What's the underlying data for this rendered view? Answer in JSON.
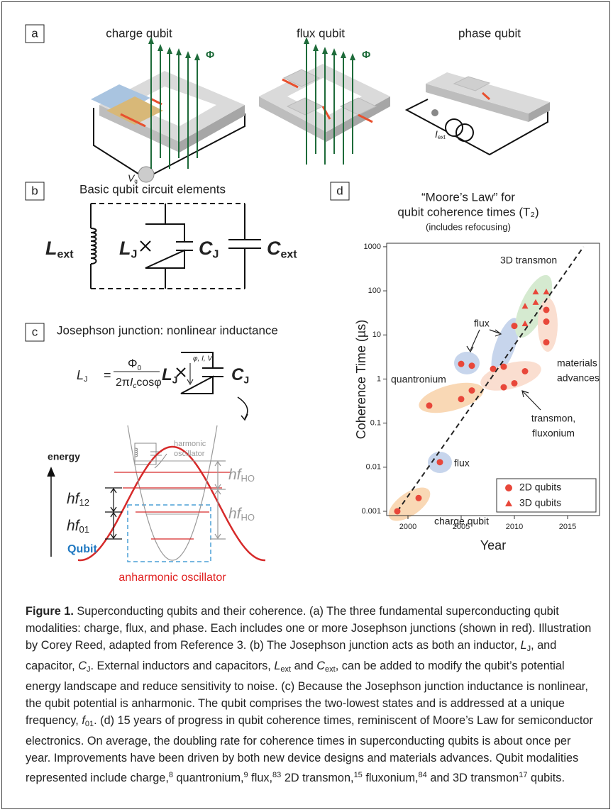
{
  "panels": {
    "a": {
      "label": "a",
      "titles": [
        "charge qubit",
        "flux qubit",
        "phase qubit"
      ],
      "flux_symbols": [
        "Φ",
        "Φ"
      ],
      "gate_voltage": {
        "main": "V",
        "sub": "g"
      },
      "bias_current": {
        "main": "I",
        "sub": "ext"
      }
    },
    "b": {
      "label": "b",
      "title": "Basic qubit circuit elements",
      "elements": [
        {
          "main": "L",
          "sub": "ext"
        },
        {
          "main": "L",
          "sub": "J"
        },
        {
          "main": "C",
          "sub": "J"
        },
        {
          "main": "C",
          "sub": "ext"
        }
      ]
    },
    "c": {
      "label": "c",
      "title": "Josephson junction: nonlinear inductance",
      "formula": {
        "lhs": {
          "main": "L",
          "sub": "J"
        },
        "equals": "=",
        "numerator": {
          "main": "Φ",
          "sub": "0"
        },
        "denominator": {
          "pre": "2π",
          "main": "I",
          "sub": "c",
          "post": "cosφ"
        }
      },
      "circuit_labels": [
        {
          "main": "L",
          "sub": "J"
        },
        {
          "main": "C",
          "sub": "J"
        }
      ],
      "junction_variables": "φ, I, V",
      "energy": "energy",
      "level_labels": [
        {
          "main": "hf",
          "sub": "12"
        },
        {
          "main": "hf",
          "sub": "01"
        },
        {
          "main": "hf",
          "sub": "HO"
        },
        {
          "main": "hf",
          "sub": "HO"
        }
      ],
      "harmonic": [
        "harmonic",
        "oscillator"
      ],
      "qubit": "Qubit",
      "anharmonic": "anharmonic oscillator"
    },
    "d": {
      "label": "d"
    }
  },
  "chart_data": {
    "type": "scatter",
    "title": [
      "“Moore’s Law” for",
      "qubit coherence times (T₂)"
    ],
    "subtitle": "(includes refocusing)",
    "x_label": "Year",
    "y_label": "Coherence Time (µs)",
    "log_y": true,
    "xlim": [
      1998,
      2018
    ],
    "ylim": [
      0.0008,
      1200
    ],
    "xticks": [
      2000,
      2005,
      2010,
      2015
    ],
    "yticks": [
      0.001,
      0.01,
      0.1,
      1,
      10,
      100,
      1000
    ],
    "legend": "lower right",
    "series": [
      {
        "name": "2D qubits",
        "color": "#e8473a",
        "marker": "circle",
        "x": [
          1999,
          2001,
          2003,
          2002,
          2005,
          2006,
          2005,
          2006,
          2008,
          2009,
          2009,
          2010,
          2011,
          2010,
          2013,
          2013,
          2013
        ],
        "values": [
          0.001,
          0.002,
          0.013,
          0.25,
          0.35,
          0.55,
          2.2,
          2.0,
          1.7,
          1.9,
          0.65,
          0.8,
          1.5,
          16,
          37,
          20,
          6.8
        ]
      },
      {
        "name": "3D qubits",
        "color": "#e8473a",
        "marker": "triangle",
        "x": [
          2011,
          2011,
          2012,
          2012,
          2013
        ],
        "values": [
          18,
          45,
          55,
          95,
          95
        ]
      }
    ],
    "trend_line": {
      "x": [
        1999,
        2016.5
      ],
      "values": [
        0.001,
        1000
      ]
    },
    "annotations": [
      "3D transmon",
      "flux",
      "quantronium",
      "materials",
      "advances",
      "transmon,",
      "fluxonium",
      "flux",
      "charge qubit"
    ]
  },
  "caption": {
    "label": "Figure 1.",
    "parts": [
      "Superconducting qubits and their coherence. (a) The three fundamental superconducting qubit modalities: charge, flux, and phase. Each includes one or more Josephson junctions (shown in red). Illustration by Corey Reed, adapted from Reference 3. (b) The Josephson junction acts as both an inductor, ",
      "L",
      "J",
      ", and capacitor, ",
      "C",
      "J",
      ". External inductors and capacitors, ",
      "L",
      "ext",
      " and ",
      "C",
      "ext",
      ", can be added to modify the qubit’s potential energy landscape and reduce sensitivity to noise. (c) Because the Josephson junction inductance is nonlinear, the qubit potential is anharmonic. The qubit comprises the two-lowest states and is addressed at a unique frequency, ",
      "f",
      "01",
      ". (d) 15 years of progress in qubit coherence times, reminiscent of Moore’s Law for semiconductor electronics. On average, the doubling rate for coherence times in superconducting qubits is about once per year. Improvements have been driven by both new device designs and materials advances. Qubit modalities represented include charge,",
      "8",
      " quantronium,",
      "9",
      " flux,",
      "83",
      " 2D transmon,",
      "15",
      " fluxonium,",
      "84",
      " and 3D transmon",
      "17",
      " qubits."
    ]
  }
}
